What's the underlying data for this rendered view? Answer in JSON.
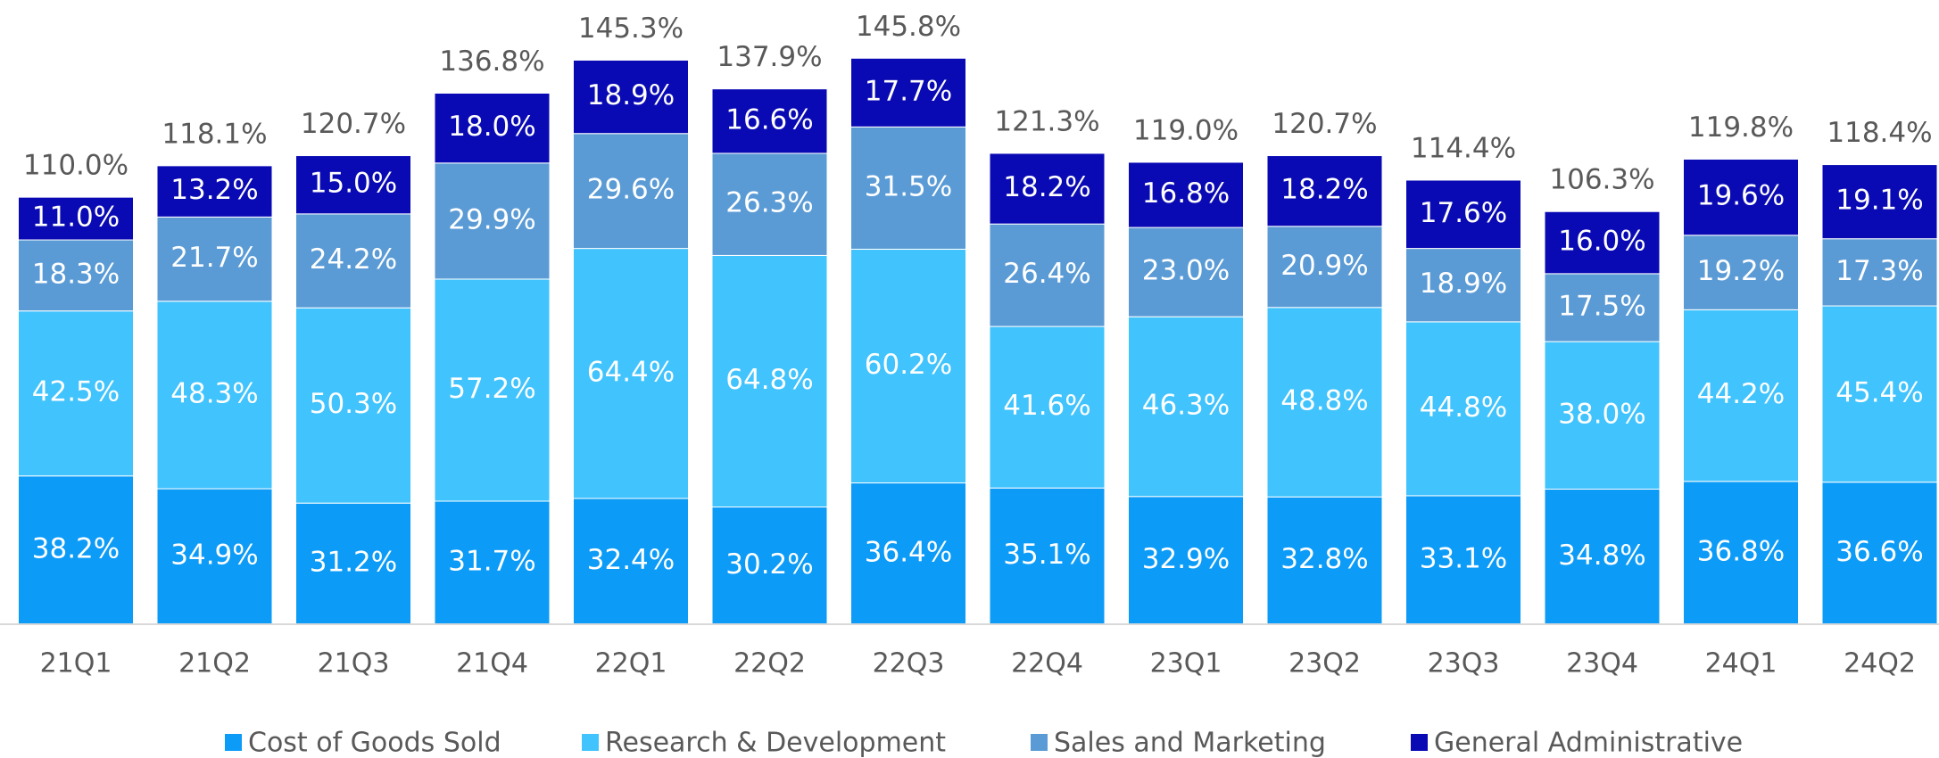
{
  "chart_data": {
    "type": "stacked_bar",
    "categories": [
      "21Q1",
      "21Q2",
      "21Q3",
      "21Q4",
      "22Q1",
      "22Q2",
      "22Q3",
      "22Q4",
      "23Q1",
      "23Q2",
      "23Q3",
      "23Q4",
      "24Q1",
      "24Q2"
    ],
    "series": [
      {
        "name": "Cost of Goods Sold",
        "color": "#0c9bf7",
        "values": [
          38.2,
          34.9,
          31.2,
          31.7,
          32.4,
          30.2,
          36.4,
          35.1,
          32.9,
          32.8,
          33.1,
          34.8,
          36.8,
          36.6
        ],
        "value_labels": [
          "38.2%",
          "34.9%",
          "31.2%",
          "31.7%",
          "32.4%",
          "30.2%",
          "36.4%",
          "35.1%",
          "32.9%",
          "32.8%",
          "33.1%",
          "34.8%",
          "36.8%",
          "36.6%"
        ]
      },
      {
        "name": "Research & Development",
        "color": "#41c3fd",
        "values": [
          42.5,
          48.3,
          50.3,
          57.2,
          64.4,
          64.8,
          60.2,
          41.6,
          46.3,
          48.8,
          44.8,
          38.0,
          44.2,
          45.4
        ],
        "value_labels": [
          "42.5%",
          "48.3%",
          "50.3%",
          "57.2%",
          "64.4%",
          "64.8%",
          "60.2%",
          "41.6%",
          "46.3%",
          "48.8%",
          "44.8%",
          "38.0%",
          "44.2%",
          "45.4%"
        ]
      },
      {
        "name": "Sales and Marketing",
        "color": "#5b9bd5",
        "values": [
          18.3,
          21.7,
          24.2,
          29.9,
          29.6,
          26.3,
          31.5,
          26.4,
          23.0,
          20.9,
          18.9,
          17.5,
          19.2,
          17.3
        ],
        "value_labels": [
          "18.3%",
          "21.7%",
          "24.2%",
          "29.9%",
          "29.6%",
          "26.3%",
          "31.5%",
          "26.4%",
          "23.0%",
          "20.9%",
          "18.9%",
          "17.5%",
          "19.2%",
          "17.3%"
        ]
      },
      {
        "name": "General Administrative",
        "color": "#0a0ab4",
        "values": [
          11.0,
          13.2,
          15.0,
          18.0,
          18.9,
          16.6,
          17.7,
          18.2,
          16.8,
          18.2,
          17.6,
          16.0,
          19.6,
          19.1
        ],
        "value_labels": [
          "11.0%",
          "13.2%",
          "15.0%",
          "18.0%",
          "18.9%",
          "16.6%",
          "17.7%",
          "18.2%",
          "16.8%",
          "18.2%",
          "17.6%",
          "16.0%",
          "19.6%",
          "19.1%"
        ]
      }
    ],
    "totals": [
      110.0,
      118.1,
      120.7,
      136.8,
      145.3,
      137.9,
      145.8,
      121.3,
      119.0,
      120.7,
      114.4,
      106.3,
      119.8,
      118.4
    ],
    "total_labels": [
      "110.0%",
      "118.1%",
      "120.7%",
      "136.8%",
      "145.3%",
      "137.9%",
      "145.8%",
      "121.3%",
      "119.0%",
      "120.7%",
      "114.4%",
      "106.3%",
      "119.8%",
      "118.4%"
    ],
    "ylim": [
      0,
      150
    ],
    "legend": "bottom"
  }
}
